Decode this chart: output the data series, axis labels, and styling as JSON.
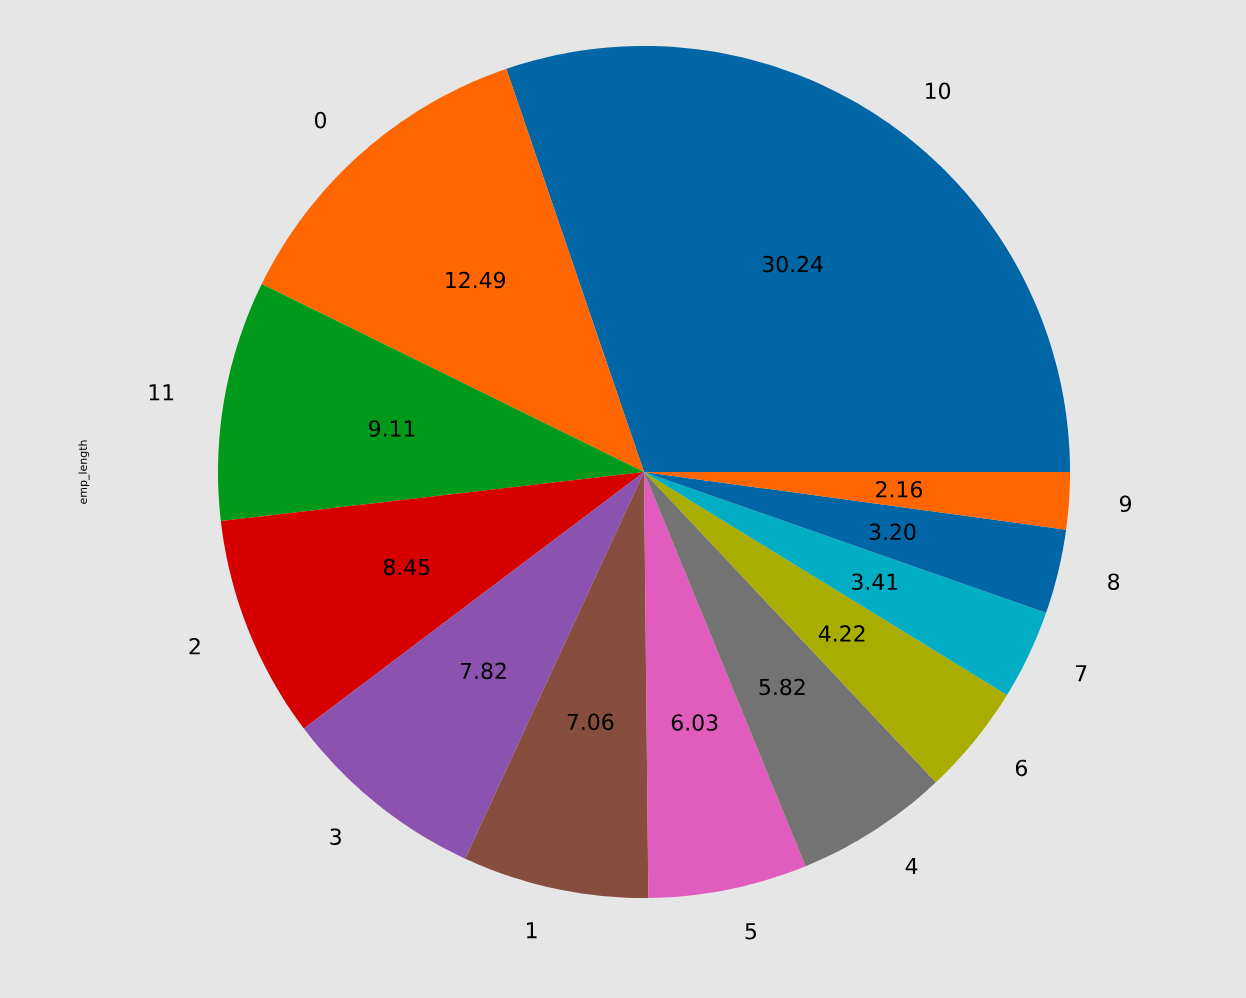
{
  "chart_data": {
    "type": "pie",
    "ylabel": "emp_length",
    "categories": [
      "10",
      "0",
      "11",
      "2",
      "3",
      "1",
      "5",
      "4",
      "6",
      "7",
      "8",
      "9"
    ],
    "values": [
      30.24,
      12.49,
      9.11,
      8.45,
      7.82,
      7.06,
      6.03,
      5.82,
      4.22,
      3.41,
      3.2,
      2.16
    ],
    "value_labels": [
      "30.24",
      "12.49",
      "9.11",
      "8.45",
      "7.82",
      "7.06",
      "6.03",
      "5.82",
      "4.22",
      "3.41",
      "3.20",
      "2.16"
    ],
    "colors": [
      "#0066a6",
      "#ff6600",
      "#00991a",
      "#d60000",
      "#8c52b0",
      "#874e40",
      "#e05cbd",
      "#737373",
      "#a8ad00",
      "#00adc4",
      "#0066a6",
      "#ff6600"
    ]
  }
}
